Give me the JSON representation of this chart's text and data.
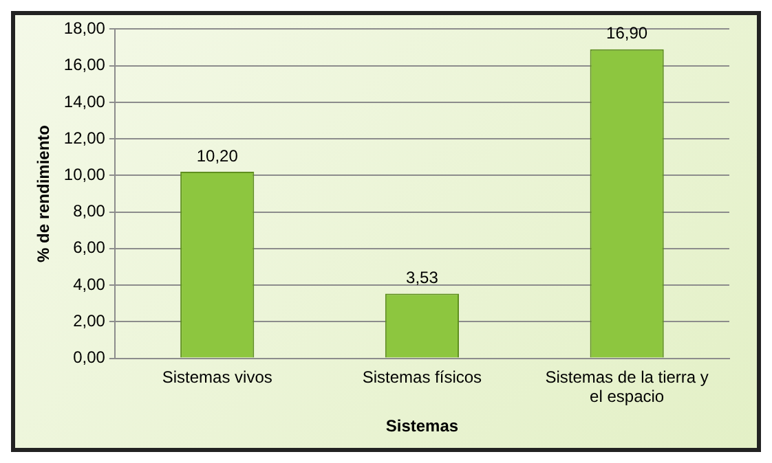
{
  "chart_data": {
    "type": "bar",
    "xlabel": "Sistemas",
    "ylabel": "% de rendimiento",
    "categories": [
      "Sistemas vivos",
      "Sistemas físicos",
      "Sistemas de la tierra y el espacio"
    ],
    "values": [
      10.2,
      3.53,
      16.9
    ],
    "value_labels": [
      "10,20",
      "3,53",
      "16,90"
    ],
    "color": "#8dc63f",
    "ylim": [
      0,
      18
    ],
    "yticks": [
      {
        "value": 0,
        "label": "0,00"
      },
      {
        "value": 2,
        "label": "2,00"
      },
      {
        "value": 4,
        "label": "4,00"
      },
      {
        "value": 6,
        "label": "6,00"
      },
      {
        "value": 8,
        "label": "8,00"
      },
      {
        "value": 10,
        "label": "10,00"
      },
      {
        "value": 12,
        "label": "12,00"
      },
      {
        "value": 14,
        "label": "14,00"
      },
      {
        "value": 16,
        "label": "16,00"
      },
      {
        "value": 18,
        "label": "18,00"
      }
    ],
    "grid": "y"
  }
}
